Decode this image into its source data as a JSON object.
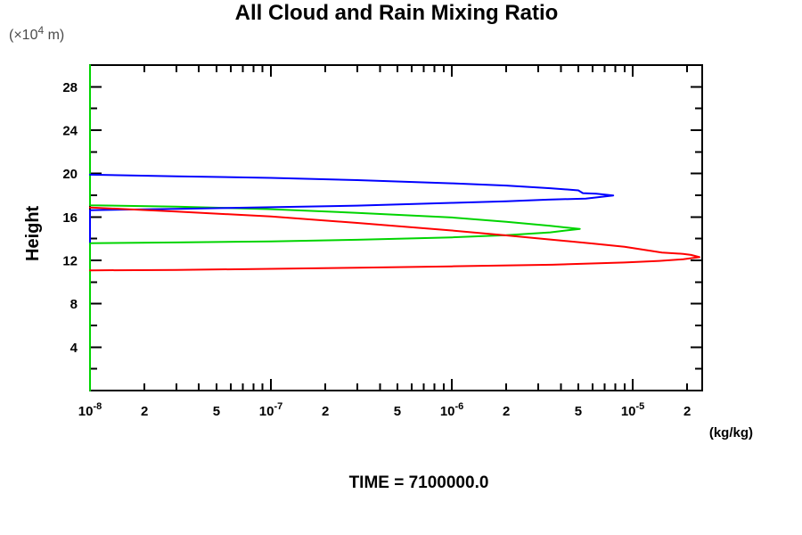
{
  "chart_data": {
    "type": "line",
    "title": "All Cloud and Rain Mixing Ratio",
    "subtitle": "TIME = 7100000.0",
    "xlabel": "(kg/kg)",
    "ylabel": "Height",
    "y_units": {
      "prefix": "(×10",
      "sup": "4",
      "suffix": " m)"
    },
    "xscale": "log",
    "xlim": [
      1e-08,
      2.42e-05
    ],
    "ylim": [
      0,
      30
    ],
    "grid": false,
    "legend": "none",
    "x_ticks": {
      "major": [
        {
          "v": 1e-08,
          "base": "10",
          "exp": "-8"
        },
        {
          "v": 1e-07,
          "base": "10",
          "exp": "-7"
        },
        {
          "v": 1e-06,
          "base": "10",
          "exp": "-6"
        },
        {
          "v": 1e-05,
          "base": "10",
          "exp": "-5"
        }
      ],
      "labeled_minor": [
        {
          "v": 2e-08,
          "label": "2"
        },
        {
          "v": 5e-08,
          "label": "5"
        },
        {
          "v": 2e-07,
          "label": "2"
        },
        {
          "v": 5e-07,
          "label": "5"
        },
        {
          "v": 2e-06,
          "label": "2"
        },
        {
          "v": 5e-06,
          "label": "5"
        },
        {
          "v": 2e-05,
          "label": "2"
        }
      ],
      "minor": [
        3e-08,
        4e-08,
        6e-08,
        7e-08,
        8e-08,
        9e-08,
        3e-07,
        4e-07,
        6e-07,
        7e-07,
        8e-07,
        9e-07,
        3e-06,
        4e-06,
        6e-06,
        7e-06,
        8e-06,
        9e-06
      ]
    },
    "y_ticks": {
      "major": [
        {
          "v": 4,
          "label": "4"
        },
        {
          "v": 8,
          "label": "8"
        },
        {
          "v": 12,
          "label": "12"
        },
        {
          "v": 16,
          "label": "16"
        },
        {
          "v": 20,
          "label": "20"
        },
        {
          "v": 24,
          "label": "24"
        },
        {
          "v": 28,
          "label": "28"
        }
      ],
      "minor": [
        2,
        6,
        10,
        14,
        18,
        22,
        26,
        30
      ]
    },
    "series": [
      {
        "name": "green",
        "color": "#00d400",
        "points": [
          [
            1e-08,
            30.0
          ],
          [
            1e-08,
            17.08
          ],
          [
            3e-08,
            16.95
          ],
          [
            1e-07,
            16.72
          ],
          [
            3e-07,
            16.38
          ],
          [
            1e-06,
            15.95
          ],
          [
            2e-06,
            15.55
          ],
          [
            3.5e-06,
            15.18
          ],
          [
            5.1e-06,
            14.9
          ],
          [
            3.5e-06,
            14.58
          ],
          [
            2e-06,
            14.32
          ],
          [
            1e-06,
            14.12
          ],
          [
            3e-07,
            13.9
          ],
          [
            1e-07,
            13.75
          ],
          [
            3e-08,
            13.65
          ],
          [
            1e-08,
            13.58
          ],
          [
            1e-08,
            0.0
          ]
        ]
      },
      {
        "name": "blue",
        "color": "#0000ff",
        "points": [
          [
            1e-08,
            19.9
          ],
          [
            3e-08,
            19.75
          ],
          [
            1e-07,
            19.6
          ],
          [
            3e-07,
            19.4
          ],
          [
            1e-06,
            19.1
          ],
          [
            2e-06,
            18.9
          ],
          [
            3.5e-06,
            18.65
          ],
          [
            5e-06,
            18.45
          ],
          [
            5.3e-06,
            18.2
          ],
          [
            6.3e-06,
            18.15
          ],
          [
            7.8e-06,
            17.98
          ],
          [
            5.5e-06,
            17.7
          ],
          [
            3.4e-06,
            17.6
          ],
          [
            2e-06,
            17.45
          ],
          [
            1e-06,
            17.3
          ],
          [
            3e-07,
            17.05
          ],
          [
            1e-07,
            16.9
          ],
          [
            3e-08,
            16.75
          ],
          [
            1e-08,
            16.63
          ],
          [
            1e-08,
            13.7
          ]
        ]
      },
      {
        "name": "red",
        "color": "#ff0000",
        "points": [
          [
            1e-08,
            16.87
          ],
          [
            3e-08,
            16.5
          ],
          [
            1e-07,
            16.05
          ],
          [
            3e-07,
            15.45
          ],
          [
            1e-06,
            14.75
          ],
          [
            2e-06,
            14.3
          ],
          [
            3.6e-06,
            13.9
          ],
          [
            6e-06,
            13.55
          ],
          [
            9e-06,
            13.25
          ],
          [
            1.3e-05,
            12.85
          ],
          [
            1.45e-05,
            12.72
          ],
          [
            1.9e-05,
            12.6
          ],
          [
            2.1e-05,
            12.5
          ],
          [
            2.34e-05,
            12.3
          ],
          [
            1.9e-05,
            12.1
          ],
          [
            1.4e-05,
            11.95
          ],
          [
            9e-06,
            11.8
          ],
          [
            3.6e-06,
            11.6
          ],
          [
            1e-06,
            11.45
          ],
          [
            3e-07,
            11.32
          ],
          [
            1e-07,
            11.22
          ],
          [
            3e-08,
            11.12
          ],
          [
            1e-08,
            11.08
          ]
        ]
      }
    ]
  }
}
